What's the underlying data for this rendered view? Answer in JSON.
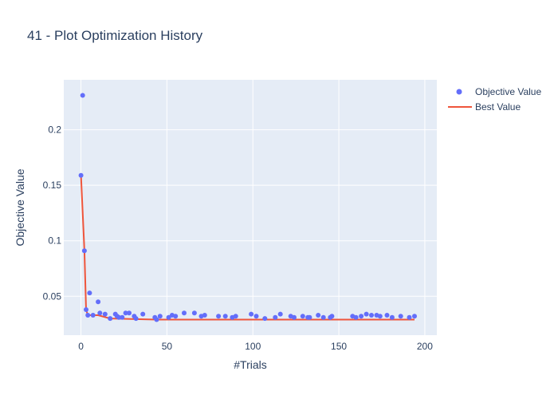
{
  "chart_data": {
    "type": "scatter",
    "title": "41 - Plot Optimization History",
    "xlabel": "#Trials",
    "ylabel": "Objective Value",
    "xlim": [
      -10,
      207
    ],
    "ylim": [
      0.015,
      0.245
    ],
    "x_ticks": [
      0,
      50,
      100,
      150,
      200
    ],
    "x_tick_labels": [
      "0",
      "50",
      "100",
      "150",
      "200"
    ],
    "y_ticks": [
      0.05,
      0.1,
      0.15,
      0.2
    ],
    "y_tick_labels": [
      "0.05",
      "0.1",
      "0.15",
      "0.2"
    ],
    "grid": true,
    "legend_position": "top-right",
    "colors": {
      "objective": "#636efa",
      "best": "#ef553b",
      "plot_bg": "#e5ecf6",
      "grid": "#ffffff",
      "text": "#2a3f5f"
    },
    "series": [
      {
        "name": "Objective Value",
        "mode": "markers",
        "x": [
          0,
          1,
          2,
          3,
          4,
          5,
          7,
          10,
          11,
          14,
          17,
          20,
          21,
          22,
          24,
          26,
          28,
          31,
          32,
          36,
          43,
          44,
          46,
          51,
          53,
          55,
          60,
          66,
          70,
          72,
          80,
          84,
          88,
          90,
          99,
          102,
          107,
          113,
          116,
          122,
          124,
          129,
          132,
          133,
          138,
          141,
          145,
          146,
          158,
          160,
          163,
          166,
          169,
          172,
          174,
          178,
          181,
          186,
          191,
          194
        ],
        "y": [
          0.159,
          0.231,
          0.091,
          0.038,
          0.033,
          0.053,
          0.033,
          0.045,
          0.035,
          0.034,
          0.03,
          0.034,
          0.032,
          0.031,
          0.031,
          0.035,
          0.035,
          0.032,
          0.03,
          0.034,
          0.031,
          0.029,
          0.032,
          0.031,
          0.033,
          0.032,
          0.035,
          0.035,
          0.032,
          0.033,
          0.032,
          0.032,
          0.031,
          0.032,
          0.034,
          0.032,
          0.03,
          0.031,
          0.034,
          0.032,
          0.031,
          0.032,
          0.031,
          0.031,
          0.033,
          0.031,
          0.031,
          0.032,
          0.032,
          0.031,
          0.032,
          0.034,
          0.033,
          0.033,
          0.032,
          0.033,
          0.031,
          0.032,
          0.031,
          0.032
        ]
      },
      {
        "name": "Best Value",
        "mode": "line",
        "x": [
          0,
          2,
          3,
          4,
          10,
          17,
          44,
          194
        ],
        "y": [
          0.159,
          0.091,
          0.038,
          0.033,
          0.033,
          0.03,
          0.029,
          0.029
        ]
      }
    ]
  }
}
